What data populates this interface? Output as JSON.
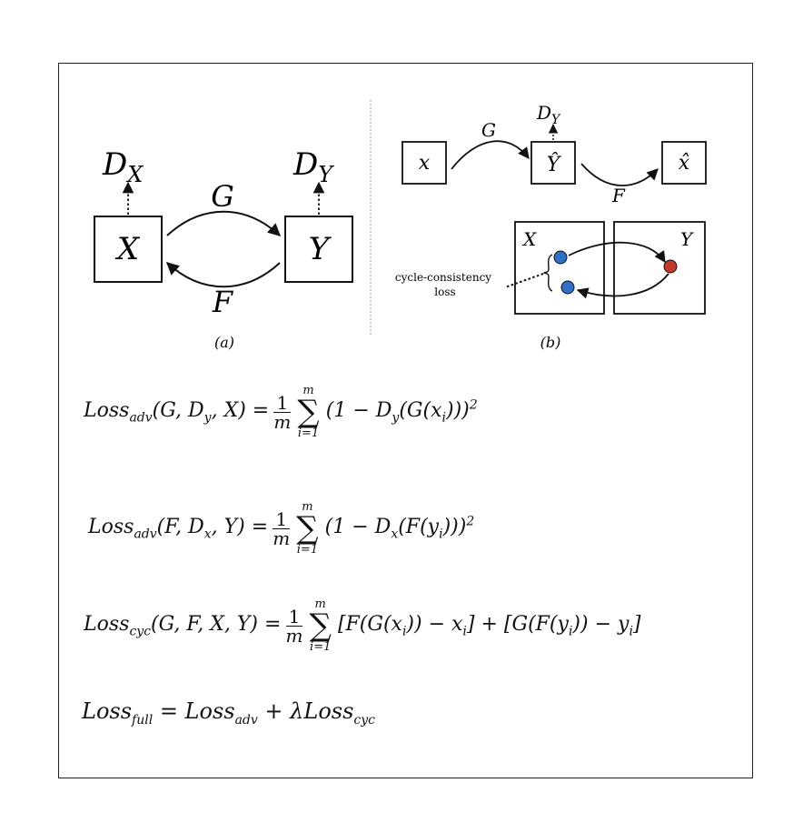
{
  "diagram_a": {
    "node_x": "X",
    "node_y": "Y",
    "disc_x": "D",
    "disc_x_sub": "X",
    "disc_y": "D",
    "disc_y_sub": "Y",
    "arrow_top": "G",
    "arrow_bottom": "F",
    "caption": "(a)"
  },
  "diagram_b": {
    "box_x": "x",
    "box_yhat": "Ŷ",
    "box_xhat": "x̂",
    "disc": "D",
    "disc_sub": "Y",
    "arrow_g": "G",
    "arrow_f": "F",
    "domain_x": "X",
    "domain_y": "Y",
    "annotation_line1": "cycle-consistency",
    "annotation_line2": "loss",
    "caption": "(b)",
    "colors": {
      "blue": "#2f6fc6",
      "red": "#c0392b"
    }
  },
  "equations": {
    "eq1": {
      "lhs": "Loss",
      "lhs_sub": "adv",
      "args": "(G, D",
      "args_sub": "y",
      "args_end": ", X) =",
      "frac_num": "1",
      "frac_den": "m",
      "sum_upper": "m",
      "sum_lower": "i=1",
      "body_a": "(1 − D",
      "body_sub": "y",
      "body_b": "(G(x",
      "body_sub2": "i",
      "body_c": ")))",
      "sup": "2"
    },
    "eq2": {
      "lhs": "Loss",
      "lhs_sub": "adv",
      "args": "(F, D",
      "args_sub": "x",
      "args_end": ", Y) =",
      "frac_num": "1",
      "frac_den": "m",
      "sum_upper": "m",
      "sum_lower": "i=1",
      "body_a": "(1 − D",
      "body_sub": "x",
      "body_b": "(F(y",
      "body_sub2": "i",
      "body_c": ")))",
      "sup": "2"
    },
    "eq3": {
      "lhs": "Loss",
      "lhs_sub": "cyc",
      "args_end": "(G, F, X, Y) =",
      "frac_num": "1",
      "frac_den": "m",
      "sum_upper": "m",
      "sum_lower": "i=1",
      "body_a": "[F(G(x",
      "body_sub": "i",
      "body_b": ")) − x",
      "body_sub2": "i",
      "body_c": "] + [G(F(y",
      "body_sub3": "i",
      "body_d": ")) − y",
      "body_sub4": "i",
      "body_e": "]"
    },
    "eq4": {
      "lhs": "Loss",
      "lhs_sub": "full",
      "mid": " = Loss",
      "mid_sub": "adv",
      "plus": " + λLoss",
      "end_sub": "cyc"
    }
  }
}
